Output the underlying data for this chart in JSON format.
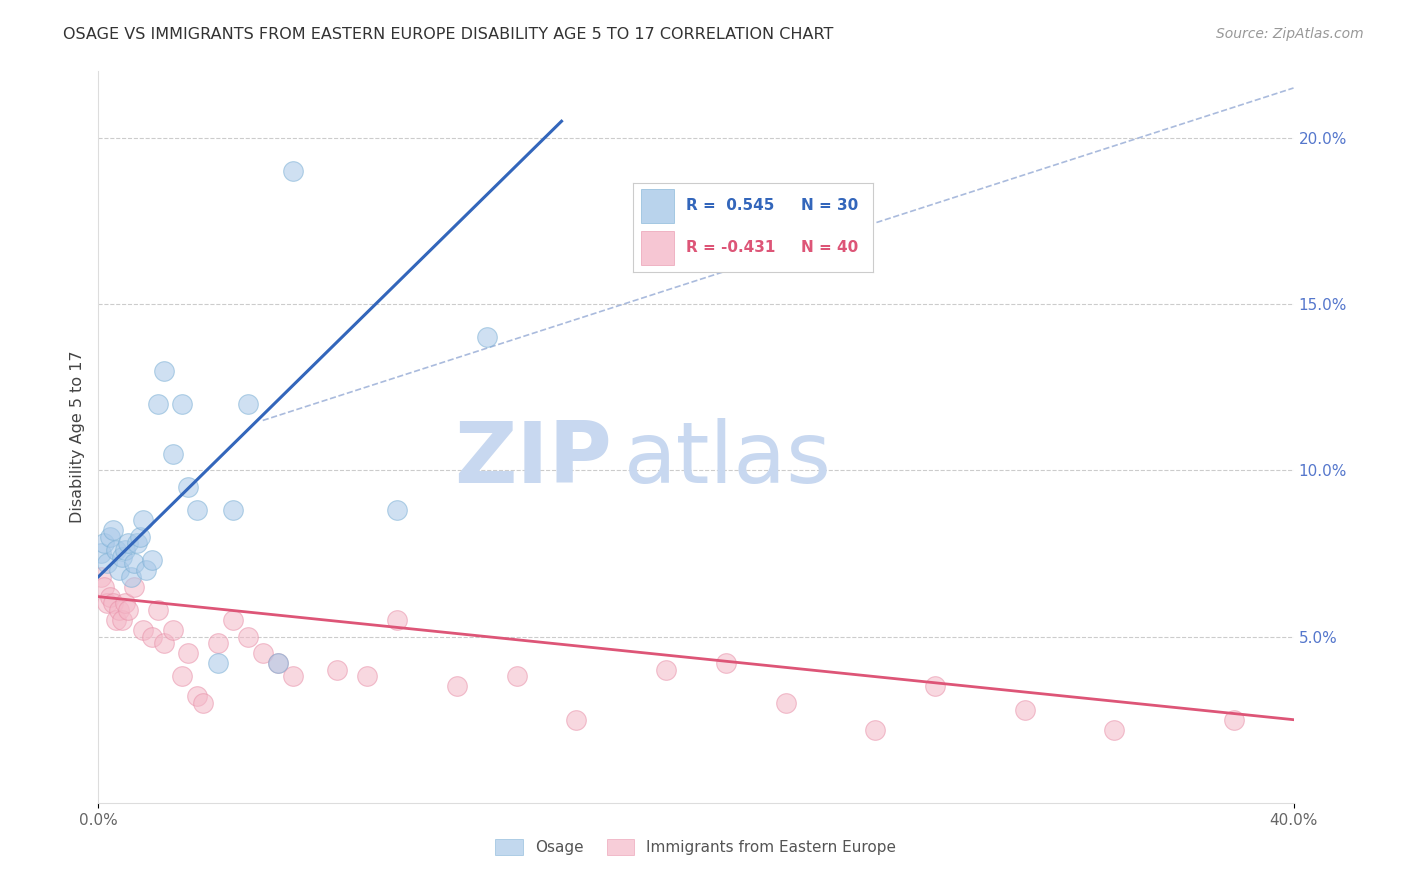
{
  "title": "OSAGE VS IMMIGRANTS FROM EASTERN EUROPE DISABILITY AGE 5 TO 17 CORRELATION CHART",
  "source": "Source: ZipAtlas.com",
  "ylabel": "Disability Age 5 to 17",
  "right_yticks": [
    "20.0%",
    "15.0%",
    "10.0%",
    "5.0%"
  ],
  "right_ytick_vals": [
    0.2,
    0.15,
    0.1,
    0.05
  ],
  "osage_color": "#a8c8e8",
  "immigrants_color": "#f4b8c8",
  "osage_edge_color": "#7aafd4",
  "immigrants_edge_color": "#e890a8",
  "blue_line_color": "#3366bb",
  "pink_line_color": "#dd5577",
  "dashed_line_color": "#aabbdd",
  "watermark_zip_color": "#c8d8f0",
  "watermark_atlas_color": "#c8d8f0",
  "background_color": "#ffffff",
  "grid_color": "#cccccc",
  "osage_x": [
    0.001,
    0.002,
    0.003,
    0.004,
    0.005,
    0.006,
    0.007,
    0.008,
    0.009,
    0.01,
    0.011,
    0.012,
    0.013,
    0.014,
    0.015,
    0.016,
    0.018,
    0.02,
    0.022,
    0.025,
    0.028,
    0.03,
    0.033,
    0.04,
    0.045,
    0.05,
    0.06,
    0.065,
    0.1,
    0.13
  ],
  "osage_y": [
    0.075,
    0.078,
    0.072,
    0.08,
    0.082,
    0.076,
    0.07,
    0.074,
    0.076,
    0.078,
    0.068,
    0.072,
    0.078,
    0.08,
    0.085,
    0.07,
    0.073,
    0.12,
    0.13,
    0.105,
    0.12,
    0.095,
    0.088,
    0.042,
    0.088,
    0.12,
    0.042,
    0.19,
    0.088,
    0.14
  ],
  "immigrants_x": [
    0.001,
    0.002,
    0.003,
    0.004,
    0.005,
    0.006,
    0.007,
    0.008,
    0.009,
    0.01,
    0.012,
    0.015,
    0.018,
    0.02,
    0.022,
    0.025,
    0.028,
    0.03,
    0.033,
    0.035,
    0.04,
    0.045,
    0.05,
    0.055,
    0.06,
    0.065,
    0.08,
    0.09,
    0.1,
    0.12,
    0.14,
    0.16,
    0.19,
    0.21,
    0.23,
    0.26,
    0.28,
    0.31,
    0.34,
    0.38
  ],
  "immigrants_y": [
    0.068,
    0.065,
    0.06,
    0.062,
    0.06,
    0.055,
    0.058,
    0.055,
    0.06,
    0.058,
    0.065,
    0.052,
    0.05,
    0.058,
    0.048,
    0.052,
    0.038,
    0.045,
    0.032,
    0.03,
    0.048,
    0.055,
    0.05,
    0.045,
    0.042,
    0.038,
    0.04,
    0.038,
    0.055,
    0.035,
    0.038,
    0.025,
    0.04,
    0.042,
    0.03,
    0.022,
    0.035,
    0.028,
    0.022,
    0.025
  ],
  "blue_line_x0": 0.0,
  "blue_line_y0": 0.068,
  "blue_line_x1": 0.155,
  "blue_line_y1": 0.205,
  "pink_line_x0": 0.0,
  "pink_line_y0": 0.062,
  "pink_line_x1": 0.4,
  "pink_line_y1": 0.025,
  "dash_line_x0": 0.055,
  "dash_line_y0": 0.115,
  "dash_line_x1": 0.4,
  "dash_line_y1": 0.215,
  "xlim": [
    0.0,
    0.4
  ],
  "ylim": [
    0.0,
    0.22
  ],
  "ygrid_ticks": [
    0.05,
    0.1,
    0.15,
    0.2
  ]
}
